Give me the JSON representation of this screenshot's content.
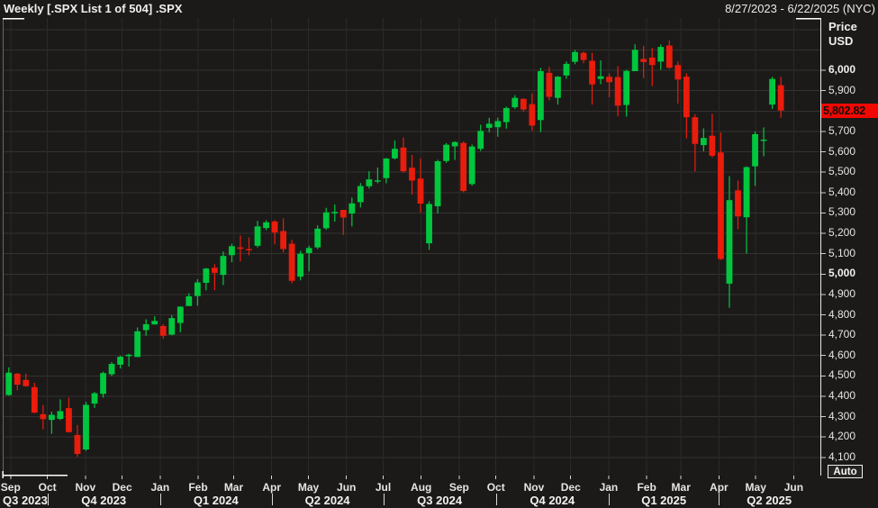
{
  "header": {
    "title": "Weekly [.SPX List 1 of 504] .SPX",
    "date_range": "8/27/2023 - 6/22/2025 (NYC)"
  },
  "price_axis": {
    "label_line1": "Price",
    "label_line2": "USD",
    "last_price_label": "5,802.82",
    "auto_button_label": "Auto",
    "ticks": [
      {
        "label": "6,000",
        "value": 6000,
        "bold": true
      },
      {
        "label": "5,900",
        "value": 5900,
        "bold": false
      },
      {
        "label": "5,700",
        "value": 5700,
        "bold": false
      },
      {
        "label": "5,600",
        "value": 5600,
        "bold": false
      },
      {
        "label": "5,500",
        "value": 5500,
        "bold": false
      },
      {
        "label": "5,400",
        "value": 5400,
        "bold": false
      },
      {
        "label": "5,300",
        "value": 5300,
        "bold": false
      },
      {
        "label": "5,200",
        "value": 5200,
        "bold": false
      },
      {
        "label": "5,100",
        "value": 5100,
        "bold": false
      },
      {
        "label": "5,000",
        "value": 5000,
        "bold": true
      },
      {
        "label": "4,900",
        "value": 4900,
        "bold": false
      },
      {
        "label": "4,800",
        "value": 4800,
        "bold": false
      },
      {
        "label": "4,700",
        "value": 4700,
        "bold": false
      },
      {
        "label": "4,600",
        "value": 4600,
        "bold": false
      },
      {
        "label": "4,500",
        "value": 4500,
        "bold": false
      },
      {
        "label": "4,400",
        "value": 4400,
        "bold": false
      },
      {
        "label": "4,300",
        "value": 4300,
        "bold": false
      },
      {
        "label": "4,200",
        "value": 4200,
        "bold": false
      },
      {
        "label": "4,100",
        "value": 4100,
        "bold": false
      }
    ]
  },
  "time_axis": {
    "months": [
      {
        "label": "Sep",
        "date": "2023-09-01"
      },
      {
        "label": "Oct",
        "date": "2023-10-01"
      },
      {
        "label": "Nov",
        "date": "2023-11-01"
      },
      {
        "label": "Dec",
        "date": "2023-12-01"
      },
      {
        "label": "Jan",
        "date": "2024-01-01"
      },
      {
        "label": "Feb",
        "date": "2024-02-01"
      },
      {
        "label": "Mar",
        "date": "2024-03-01"
      },
      {
        "label": "Apr",
        "date": "2024-04-01"
      },
      {
        "label": "May",
        "date": "2024-05-01"
      },
      {
        "label": "Jun",
        "date": "2024-06-01"
      },
      {
        "label": "Jul",
        "date": "2024-07-01"
      },
      {
        "label": "Aug",
        "date": "2024-08-01"
      },
      {
        "label": "Sep",
        "date": "2024-09-01"
      },
      {
        "label": "Oct",
        "date": "2024-10-01"
      },
      {
        "label": "Nov",
        "date": "2024-11-01"
      },
      {
        "label": "Dec",
        "date": "2024-12-01"
      },
      {
        "label": "Jan",
        "date": "2025-01-01"
      },
      {
        "label": "Feb",
        "date": "2025-02-01"
      },
      {
        "label": "Mar",
        "date": "2025-03-01"
      },
      {
        "label": "Apr",
        "date": "2025-04-01"
      },
      {
        "label": "May",
        "date": "2025-05-01"
      },
      {
        "label": "Jun",
        "date": "2025-06-01"
      }
    ],
    "quarters": [
      {
        "label": "Q3 2023",
        "start": "2023-08-27",
        "end": "2023-10-01",
        "align": "left"
      },
      {
        "label": "Q4 2023",
        "start": "2023-10-01",
        "end": "2024-01-01"
      },
      {
        "label": "Q1 2024",
        "start": "2024-01-01",
        "end": "2024-04-01"
      },
      {
        "label": "Q2 2024",
        "start": "2024-04-01",
        "end": "2024-07-01"
      },
      {
        "label": "Q3 2024",
        "start": "2024-07-01",
        "end": "2024-10-01"
      },
      {
        "label": "Q4 2024",
        "start": "2024-10-01",
        "end": "2025-01-01"
      },
      {
        "label": "Q1 2025",
        "start": "2025-01-01",
        "end": "2025-04-01"
      },
      {
        "label": "Q2 2025",
        "start": "2025-04-01",
        "end": "2025-06-22"
      }
    ]
  },
  "colors": {
    "background": "#1c1a19",
    "up_candle": "#00c73e",
    "down_candle": "#ea1c0c",
    "badge_bg": "#f10800",
    "badge_text": "#140c0a",
    "grid_horizontal": "#35322f",
    "grid_vertical": "#2c2a28",
    "axis_separator": "#e9e7e4",
    "border_highlight": "#ffffff",
    "text": "#eceae7"
  },
  "chart_data": {
    "type": "candlestick",
    "timeframe": "Weekly",
    "symbol": ".SPX",
    "title": "Weekly [.SPX List 1 of 504] .SPX",
    "x_range": {
      "start": "2023-08-27",
      "end": "2025-06-22"
    },
    "ylim": [
      4013,
      6257
    ],
    "y_gridline_step": 100,
    "grid": true,
    "last_price": 5802.82,
    "columns": [
      "week_ending",
      "open",
      "high",
      "low",
      "close"
    ],
    "weeks": [
      [
        "2023-09-01",
        4406,
        4542,
        4403,
        4516
      ],
      [
        "2023-09-08",
        4511,
        4514,
        4430,
        4457
      ],
      [
        "2023-09-15",
        4480,
        4511,
        4447,
        4450
      ],
      [
        "2023-09-22",
        4445,
        4466,
        4316,
        4320
      ],
      [
        "2023-09-29",
        4312,
        4357,
        4238,
        4288
      ],
      [
        "2023-10-06",
        4284,
        4324,
        4216,
        4309
      ],
      [
        "2023-10-13",
        4289,
        4385,
        4283,
        4327
      ],
      [
        "2023-10-20",
        4342,
        4393,
        4223,
        4224
      ],
      [
        "2023-10-27",
        4210,
        4259,
        4104,
        4117
      ],
      [
        "2023-11-03",
        4139,
        4373,
        4132,
        4358
      ],
      [
        "2023-11-10",
        4364,
        4421,
        4343,
        4415
      ],
      [
        "2023-11-17",
        4412,
        4521,
        4394,
        4514
      ],
      [
        "2023-11-24",
        4508,
        4568,
        4499,
        4559
      ],
      [
        "2023-12-01",
        4555,
        4599,
        4537,
        4594
      ],
      [
        "2023-12-08",
        4597,
        4609,
        4546,
        4604
      ],
      [
        "2023-12-15",
        4593,
        4738,
        4593,
        4719
      ],
      [
        "2023-12-22",
        4725,
        4778,
        4697,
        4754
      ],
      [
        "2023-12-29",
        4753,
        4793,
        4751,
        4770
      ],
      [
        "2024-01-05",
        4745,
        4754,
        4682,
        4697
      ],
      [
        "2024-01-12",
        4703,
        4798,
        4699,
        4784
      ],
      [
        "2024-01-19",
        4760,
        4842,
        4714,
        4840
      ],
      [
        "2024-01-26",
        4843,
        4906,
        4844,
        4891
      ],
      [
        "2024-02-02",
        4892,
        4975,
        4845,
        4959
      ],
      [
        "2024-02-09",
        4957,
        5030,
        4920,
        5027
      ],
      [
        "2024-02-16",
        5031,
        5048,
        4921,
        5006
      ],
      [
        "2024-02-23",
        4996,
        5111,
        4946,
        5089
      ],
      [
        "2024-03-01",
        5093,
        5149,
        5058,
        5137
      ],
      [
        "2024-03-08",
        5131,
        5189,
        5062,
        5124
      ],
      [
        "2024-03-15",
        5123,
        5180,
        5092,
        5117
      ],
      [
        "2024-03-22",
        5139,
        5261,
        5131,
        5234
      ],
      [
        "2024-03-28",
        5226,
        5264,
        5216,
        5254
      ],
      [
        "2024-04-05",
        5258,
        5265,
        5146,
        5204
      ],
      [
        "2024-04-12",
        5211,
        5274,
        5107,
        5123
      ],
      [
        "2024-04-19",
        5149,
        5168,
        4954,
        4967
      ],
      [
        "2024-04-26",
        4987,
        5114,
        4969,
        5100
      ],
      [
        "2024-05-03",
        5103,
        5139,
        5013,
        5128
      ],
      [
        "2024-05-10",
        5131,
        5239,
        5123,
        5223
      ],
      [
        "2024-05-17",
        5225,
        5325,
        5217,
        5303
      ],
      [
        "2024-05-24",
        5298,
        5342,
        5257,
        5305
      ],
      [
        "2024-05-31",
        5315,
        5315,
        5192,
        5278
      ],
      [
        "2024-06-07",
        5297,
        5375,
        5234,
        5347
      ],
      [
        "2024-06-14",
        5353,
        5447,
        5327,
        5432
      ],
      [
        "2024-06-21",
        5431,
        5505,
        5420,
        5465
      ],
      [
        "2024-06-28",
        5460,
        5523,
        5446,
        5460
      ],
      [
        "2024-07-05",
        5471,
        5570,
        5446,
        5567
      ],
      [
        "2024-07-12",
        5568,
        5656,
        5563,
        5615
      ],
      [
        "2024-07-19",
        5621,
        5670,
        5497,
        5505
      ],
      [
        "2024-07-26",
        5522,
        5585,
        5390,
        5459
      ],
      [
        "2024-08-02",
        5469,
        5567,
        5302,
        5346
      ],
      [
        "2024-08-09",
        5151,
        5358,
        5119,
        5344
      ],
      [
        "2024-08-16",
        5333,
        5561,
        5297,
        5554
      ],
      [
        "2024-08-23",
        5555,
        5643,
        5546,
        5635
      ],
      [
        "2024-08-30",
        5627,
        5652,
        5560,
        5648
      ],
      [
        "2024-09-06",
        5644,
        5651,
        5402,
        5408
      ],
      [
        "2024-09-13",
        5442,
        5636,
        5434,
        5626
      ],
      [
        "2024-09-20",
        5615,
        5733,
        5604,
        5703
      ],
      [
        "2024-09-27",
        5718,
        5767,
        5696,
        5738
      ],
      [
        "2024-10-04",
        5721,
        5768,
        5674,
        5751
      ],
      [
        "2024-10-11",
        5746,
        5822,
        5714,
        5815
      ],
      [
        "2024-10-18",
        5819,
        5878,
        5811,
        5865
      ],
      [
        "2024-10-25",
        5860,
        5863,
        5797,
        5808
      ],
      [
        "2024-11-01",
        5834,
        5887,
        5704,
        5729
      ],
      [
        "2024-11-08",
        5756,
        6012,
        5697,
        5996
      ],
      [
        "2024-11-15",
        5988,
        6017,
        5853,
        5870
      ],
      [
        "2024-11-22",
        5865,
        5972,
        5832,
        5969
      ],
      [
        "2024-11-29",
        5975,
        6044,
        5959,
        6032
      ],
      [
        "2024-12-06",
        6042,
        6100,
        6030,
        6090
      ],
      [
        "2024-12-13",
        6086,
        6092,
        6035,
        6051
      ],
      [
        "2024-12-20",
        6047,
        6086,
        5832,
        5931
      ],
      [
        "2024-12-27",
        5958,
        6049,
        5932,
        5971
      ],
      [
        "2025-01-03",
        5969,
        5985,
        5868,
        5942
      ],
      [
        "2025-01-10",
        5967,
        6021,
        5775,
        5827
      ],
      [
        "2025-01-17",
        5830,
        6003,
        5773,
        5997
      ],
      [
        "2025-01-24",
        5996,
        6128,
        5996,
        6101
      ],
      [
        "2025-01-31",
        6056,
        6121,
        5962,
        6041
      ],
      [
        "2025-02-07",
        6063,
        6110,
        5923,
        6026
      ],
      [
        "2025-02-14",
        6043,
        6127,
        6003,
        6115
      ],
      [
        "2025-02-21",
        6122,
        6147,
        6008,
        6013
      ],
      [
        "2025-02-28",
        6026,
        6043,
        5837,
        5955
      ],
      [
        "2025-03-07",
        5969,
        5986,
        5666,
        5770
      ],
      [
        "2025-03-14",
        5770,
        5785,
        5504,
        5639
      ],
      [
        "2025-03-21",
        5633,
        5715,
        5603,
        5668
      ],
      [
        "2025-03-28",
        5679,
        5787,
        5572,
        5581
      ],
      [
        "2025-04-04",
        5597,
        5695,
        5069,
        5074
      ],
      [
        "2025-04-11",
        4953,
        5481,
        4835,
        5363
      ],
      [
        "2025-04-17",
        5411,
        5459,
        5220,
        5283
      ],
      [
        "2025-04-25",
        5279,
        5528,
        5101,
        5525
      ],
      [
        "2025-05-02",
        5529,
        5700,
        5433,
        5687
      ],
      [
        "2025-05-09",
        5656,
        5720,
        5578,
        5660
      ],
      [
        "2025-05-16",
        5832,
        5968,
        5810,
        5958
      ],
      [
        "2025-05-23",
        5927,
        5968,
        5767,
        5803
      ]
    ]
  }
}
